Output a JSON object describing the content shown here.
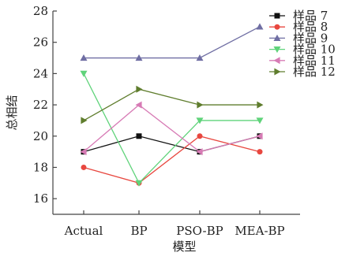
{
  "chart_data": {
    "type": "line",
    "xlabel": "模型",
    "ylabel": "总相结",
    "categories": [
      "Actual",
      "BP",
      "PSO-BP",
      "MEA-BP"
    ],
    "ylim": [
      15,
      28
    ],
    "yticks": [
      16,
      18,
      20,
      22,
      24,
      26,
      28
    ],
    "grid": false,
    "legend_position": "top-right",
    "series": [
      {
        "name": "样品 7",
        "color": "#111111",
        "marker": "square",
        "values": [
          19,
          20,
          19,
          20
        ]
      },
      {
        "name": "样品 8",
        "color": "#e8473f",
        "marker": "circle",
        "values": [
          18,
          17,
          20,
          19
        ]
      },
      {
        "name": "样品 9",
        "color": "#6f6ea3",
        "marker": "triangle-up",
        "values": [
          25,
          25,
          25,
          27
        ]
      },
      {
        "name": "样品 10",
        "color": "#5fd37a",
        "marker": "triangle-down",
        "values": [
          24,
          17,
          21,
          21
        ]
      },
      {
        "name": "样品 11",
        "color": "#d77bb5",
        "marker": "triangle-left",
        "values": [
          19,
          22,
          19,
          20
        ]
      },
      {
        "name": "样品 12",
        "color": "#5f7d2d",
        "marker": "triangle-right",
        "values": [
          21,
          23,
          22,
          22
        ]
      }
    ]
  }
}
